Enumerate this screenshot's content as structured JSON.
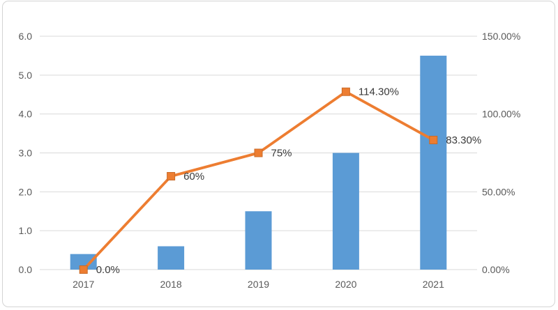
{
  "colors": {
    "bar": "#5b9bd5",
    "line": "#ed7d31",
    "marker_edge": "#c96a28",
    "grid": "#d9d9d9",
    "tick_text": "#595959",
    "data_label_text": "#3a3a3a",
    "frame_border": "#d4d4d4",
    "background": "#ffffff"
  },
  "chart_data": {
    "type": "combo",
    "categories": [
      "2017",
      "2018",
      "2019",
      "2020",
      "2021"
    ],
    "series": [
      {
        "name": "value-bars",
        "type": "bar",
        "axis": "left",
        "color": "#5b9bd5",
        "values": [
          0.4,
          0.6,
          1.5,
          3.0,
          5.5
        ]
      },
      {
        "name": "growth-rate-line",
        "type": "line",
        "axis": "right",
        "color": "#ed7d31",
        "values": [
          0,
          60,
          75,
          114.3,
          83.3
        ],
        "point_labels": [
          "0.0%",
          "60%",
          "75%",
          "114.30%",
          "83.30%"
        ]
      }
    ],
    "left_axis": {
      "min": 0,
      "max": 6,
      "tick_step": 1,
      "tick_labels": [
        "0.0",
        "1.0",
        "2.0",
        "3.0",
        "4.0",
        "5.0",
        "6.0"
      ]
    },
    "right_axis": {
      "min": 0,
      "max": 150,
      "tick_step": 50,
      "tick_labels": [
        "0.00%",
        "50.00%",
        "100.00%",
        "150.00%"
      ]
    },
    "grid": true,
    "legend": "none"
  }
}
